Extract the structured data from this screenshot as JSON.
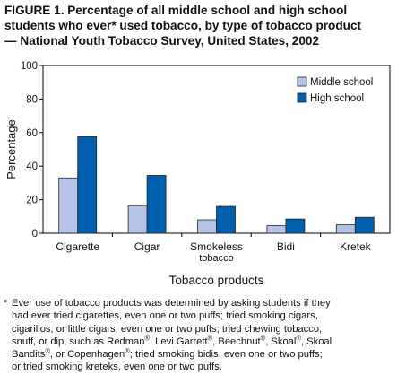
{
  "title_lines": [
    "FIGURE 1. Percentage of all middle school and high school",
    "students who ever* used tobacco, by type of tobacco product",
    "— National Youth Tobacco Survey, United States, 2002"
  ],
  "colors": {
    "middle_school": "#b4c3e6",
    "high_school": "#0060b0",
    "axis": "#000000"
  },
  "chart_data": {
    "type": "bar",
    "title": "Percentage of all middle school and high school students who ever* used tobacco, by type of tobacco product — National Youth Tobacco Survey, United States, 2002",
    "xlabel": "Tobacco products",
    "ylabel": "Percentage",
    "ylim": [
      0,
      100
    ],
    "yticks": [
      0,
      20,
      40,
      60,
      80,
      100
    ],
    "grid": false,
    "legend_position": "top-right",
    "categories": [
      "Cigarette",
      "Cigar",
      "Smokeless tobacco",
      "Bidi",
      "Kretek"
    ],
    "category_labels": [
      [
        "Cigarette"
      ],
      [
        "Cigar"
      ],
      [
        "Smokeless",
        "tobacco"
      ],
      [
        "Bidi"
      ],
      [
        "Kretek"
      ]
    ],
    "series": [
      {
        "name": "Middle school",
        "values": [
          33,
          16.5,
          8,
          4.5,
          5
        ]
      },
      {
        "name": "High school",
        "values": [
          57.5,
          34.5,
          16,
          8.5,
          9.5
        ]
      }
    ]
  },
  "footnote": {
    "marker": "*",
    "lines": [
      [
        "Ever use of tobacco products was determined by asking students if they"
      ],
      [
        "had ever tried cigarettes, even one or two puffs; tried smoking cigars,"
      ],
      [
        "cigarillos, or little cigars, even one or two puffs; tried chewing tobacco,"
      ],
      [
        "snuff, or dip, such as Redman",
        "®",
        ", Levi Garrett",
        "®",
        ", Beechnut",
        "®",
        ", Skoal",
        "®",
        ", Skoal"
      ],
      [
        "Bandits",
        "®",
        ", or Copenhagen",
        "®",
        "; tried smoking bidis, even one or two puffs;"
      ],
      [
        "or tried smoking kreteks, even one or two puffs."
      ]
    ]
  }
}
